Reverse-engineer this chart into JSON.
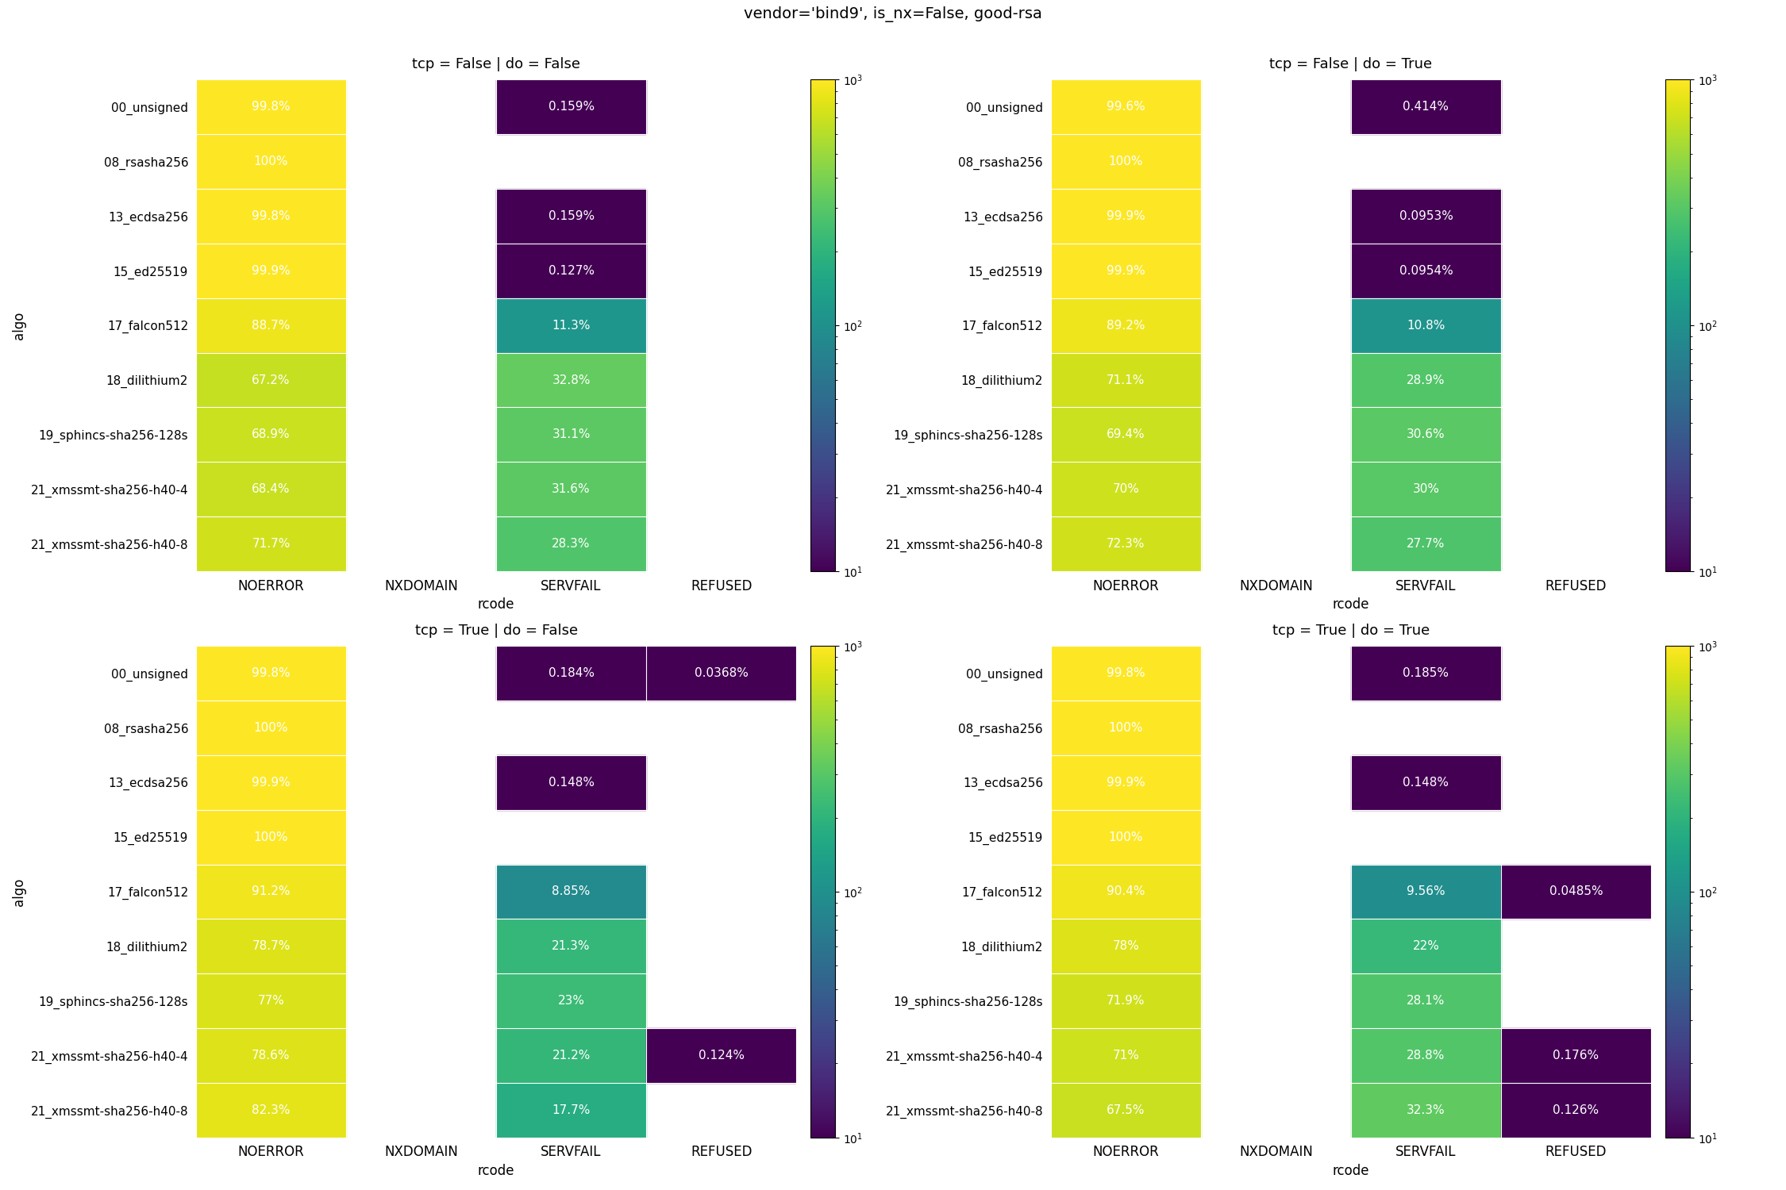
{
  "title": "vendor='bind9', is_nx=False, good-rsa",
  "subplots": [
    {
      "title": "tcp = False | do = False",
      "algos": [
        "00_unsigned",
        "08_rsasha256",
        "13_ecdsa256",
        "15_ed25519",
        "17_falcon512",
        "18_dilithium2",
        "19_sphincs-sha256-128s",
        "21_xmssmt-sha256-h40-4",
        "21_xmssmt-sha256-h40-8"
      ],
      "NOERROR": [
        99.8,
        100.0,
        99.8,
        99.9,
        88.7,
        67.2,
        68.9,
        68.4,
        71.7
      ],
      "NXDOMAIN": [
        0.0,
        0.0,
        0.0,
        0.0,
        0.0,
        0.0,
        0.0,
        0.0,
        0.0
      ],
      "SERVFAIL": [
        0.159,
        0.0,
        0.159,
        0.127,
        11.3,
        32.8,
        31.1,
        31.6,
        28.3
      ],
      "REFUSED": [
        0.0,
        0.0,
        0.0,
        0.0,
        0.0,
        0.0,
        0.0,
        0.0,
        0.0
      ]
    },
    {
      "title": "tcp = False | do = True",
      "algos": [
        "00_unsigned",
        "08_rsasha256",
        "13_ecdsa256",
        "15_ed25519",
        "17_falcon512",
        "18_dilithium2",
        "19_sphincs-sha256-128s",
        "21_xmssmt-sha256-h40-4",
        "21_xmssmt-sha256-h40-8"
      ],
      "NOERROR": [
        99.6,
        100.0,
        99.9,
        99.9,
        89.2,
        71.1,
        69.4,
        70.0,
        72.3
      ],
      "NXDOMAIN": [
        0.0,
        0.0,
        0.0,
        0.0,
        0.0,
        0.0,
        0.0,
        0.0,
        0.0
      ],
      "SERVFAIL": [
        0.414,
        0.0,
        0.0953,
        0.0954,
        10.8,
        28.9,
        30.6,
        30.0,
        27.7
      ],
      "REFUSED": [
        0.0,
        0.0,
        0.0,
        0.0,
        0.0,
        0.0,
        0.0,
        0.0,
        0.0
      ]
    },
    {
      "title": "tcp = True | do = False",
      "algos": [
        "00_unsigned",
        "08_rsasha256",
        "13_ecdsa256",
        "15_ed25519",
        "17_falcon512",
        "18_dilithium2",
        "19_sphincs-sha256-128s",
        "21_xmssmt-sha256-h40-4",
        "21_xmssmt-sha256-h40-8"
      ],
      "NOERROR": [
        99.8,
        100.0,
        99.9,
        100.0,
        91.2,
        78.7,
        77.0,
        78.6,
        82.3
      ],
      "NXDOMAIN": [
        0.0,
        0.0,
        0.0,
        0.0,
        0.0,
        0.0,
        0.0,
        0.0,
        0.0
      ],
      "SERVFAIL": [
        0.184,
        0.0,
        0.148,
        0.0,
        8.85,
        21.3,
        23.0,
        21.2,
        17.7
      ],
      "REFUSED": [
        0.0368,
        0.0,
        0.0,
        0.0,
        0.0,
        0.0,
        0.0,
        0.124,
        0.0
      ]
    },
    {
      "title": "tcp = True | do = True",
      "algos": [
        "00_unsigned",
        "08_rsasha256",
        "13_ecdsa256",
        "15_ed25519",
        "17_falcon512",
        "18_dilithium2",
        "19_sphincs-sha256-128s",
        "21_xmssmt-sha256-h40-4",
        "21_xmssmt-sha256-h40-8"
      ],
      "NOERROR": [
        99.8,
        100.0,
        99.9,
        100.0,
        90.4,
        78.0,
        71.9,
        71.0,
        67.5
      ],
      "NXDOMAIN": [
        0.0,
        0.0,
        0.0,
        0.0,
        0.0,
        0.0,
        0.0,
        0.0,
        0.0
      ],
      "SERVFAIL": [
        0.185,
        0.0,
        0.148,
        0.0,
        9.56,
        22.0,
        28.1,
        28.8,
        32.3
      ],
      "REFUSED": [
        0.0,
        0.0,
        0.0,
        0.0,
        0.0485,
        0.0,
        0.0,
        0.176,
        0.126
      ]
    }
  ],
  "rcodes": [
    "NOERROR",
    "NXDOMAIN",
    "SERVFAIL",
    "REFUSED"
  ],
  "colormap": "viridis",
  "vmin": 10,
  "vmax": 1000,
  "scale_factor": 10,
  "background": "#ffffff",
  "title_fontsize": 14,
  "subplot_title_fontsize": 13,
  "tick_fontsize": 11,
  "label_fontsize": 12
}
